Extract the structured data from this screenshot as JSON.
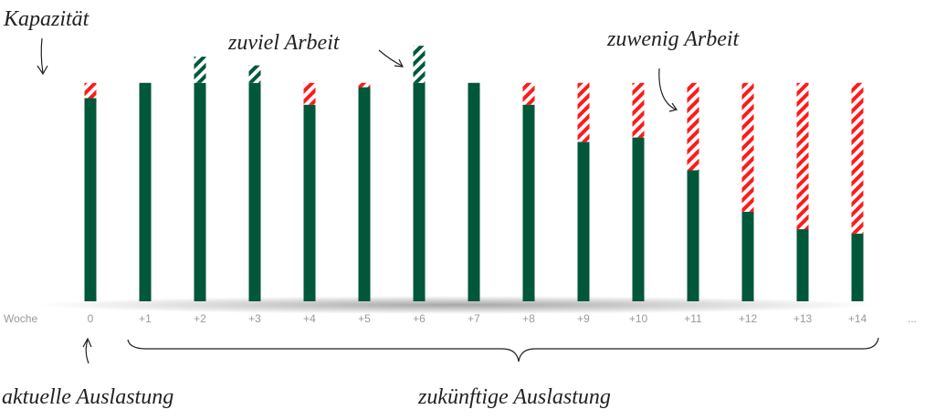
{
  "chart_data": {
    "type": "bar",
    "annotations": {
      "capacity": "Kapazität",
      "overload": "zuviel Arbeit",
      "underload": "zuwenig Arbeit",
      "current": "aktuelle Auslastung",
      "future": "zukünftige Auslastung"
    },
    "x_label": "Woche",
    "categories": [
      "0",
      "+1",
      "+2",
      "+3",
      "+4",
      "+5",
      "+6",
      "+7",
      "+8",
      "+9",
      "+10",
      "+11",
      "+12",
      "+13",
      "+14",
      "..."
    ],
    "capacity": 100,
    "values": [
      93,
      100,
      112,
      108,
      90,
      98,
      117,
      100,
      90,
      73,
      75,
      60,
      41,
      33,
      31,
      null
    ],
    "colors": {
      "load": "#00573a",
      "underload": "#ff1a1a"
    },
    "ylim": [
      0,
      130
    ]
  }
}
